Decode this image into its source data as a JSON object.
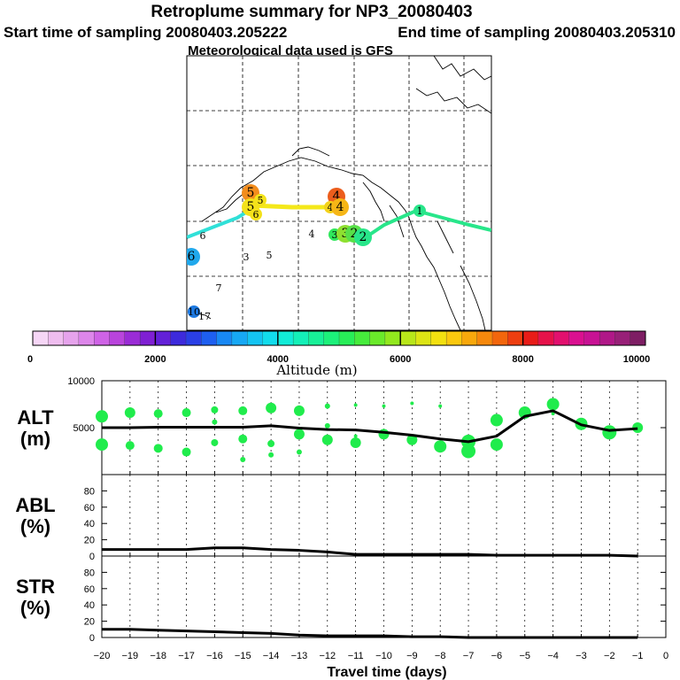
{
  "header": {
    "title": "Retroplume summary for NP3_20080403",
    "start_label": "Start time of sampling 20080403.205222",
    "end_label": "End time of sampling 20080403.205310",
    "met_label": "Meteorological data used is GFS"
  },
  "colorbar": {
    "label": "Altitude (m)",
    "min": 0,
    "max": 10000,
    "ticks": [
      "0",
      "2000",
      "4000",
      "6000",
      "8000",
      "10000"
    ],
    "colors": [
      "#f6d6f6",
      "#efbdef",
      "#e6a3ec",
      "#dd86ea",
      "#cf63e6",
      "#b944dc",
      "#9a2cd6",
      "#7f1fd3",
      "#6320d8",
      "#3d2adc",
      "#2a3fe6",
      "#1e5ff0",
      "#1888f4",
      "#17a8f4",
      "#14c4f2",
      "#12dcec",
      "#12ecd8",
      "#14f0b8",
      "#18f098",
      "#1cf07a",
      "#28ee58",
      "#46ec3c",
      "#6aea2a",
      "#92e81e",
      "#b8e61a",
      "#dce414",
      "#f2e010",
      "#fac80e",
      "#f8a80c",
      "#f6880c",
      "#f2660c",
      "#ee3e10",
      "#e81c18",
      "#e6124a",
      "#e2106e",
      "#da1090",
      "#c81294",
      "#b01888",
      "#982078",
      "#7e1e64"
    ]
  },
  "map_markers": [
    {
      "label": "5",
      "color": "#f28c1c",
      "size": "big"
    },
    {
      "label": "5",
      "color": "#f4e21a",
      "size": "mid"
    },
    {
      "label": "5",
      "color": "#f4e21a",
      "size": "big"
    },
    {
      "label": "6",
      "color": "#f4e21a",
      "size": "mid"
    },
    {
      "label": "4",
      "color": "#ec5d1c",
      "size": "big"
    },
    {
      "label": "4",
      "color": "#f4d21a",
      "size": "mid"
    },
    {
      "label": "4",
      "color": "#f6b616",
      "size": "big"
    },
    {
      "label": "4",
      "color": "#000000",
      "size": "text"
    },
    {
      "label": "3",
      "color": "#30e85c",
      "size": "mid"
    },
    {
      "label": "3",
      "color": "#8ee030",
      "size": "big"
    },
    {
      "label": "2",
      "color": "#58e048",
      "size": "big"
    },
    {
      "label": "2",
      "color": "#28e68a",
      "size": "big"
    },
    {
      "label": "1",
      "color": "#28e68a",
      "size": "mid"
    },
    {
      "label": "6",
      "color": "#000000",
      "size": "text"
    },
    {
      "label": "6",
      "color": "#20a8ec",
      "size": "big"
    },
    {
      "label": "3",
      "color": "#000000",
      "size": "text"
    },
    {
      "label": "5",
      "color": "#1c90d8",
      "size": "text"
    },
    {
      "label": "7",
      "color": "#000000",
      "size": "text"
    },
    {
      "label": "10",
      "color": "#1c78e0",
      "size": "mid"
    },
    {
      "label": "17",
      "color": "#2060e0",
      "size": "text"
    }
  ],
  "map_trajectories": [
    {
      "name": "cyan",
      "color": "#30e0d8"
    },
    {
      "name": "yellow",
      "color": "#f4e81a"
    },
    {
      "name": "green",
      "color": "#28e68a"
    }
  ],
  "chart_data": [
    {
      "type": "line",
      "panel": "ALT",
      "ylabel": "ALT",
      "yunit": "(m)",
      "ylim": [
        0,
        10000
      ],
      "yticks": [
        5000,
        10000
      ],
      "xlim": [
        -20,
        0
      ],
      "series": [
        {
          "name": "median altitude",
          "color": "#000000",
          "x": [
            -20,
            -19,
            -18,
            -17,
            -16,
            -15,
            -14,
            -13,
            -12,
            -11,
            -10,
            -9,
            -8,
            -7,
            -6,
            -5,
            -4,
            -3,
            -2,
            -1
          ],
          "values": [
            5000,
            5000,
            5050,
            5050,
            5050,
            5050,
            5200,
            4950,
            4800,
            4750,
            4500,
            4200,
            3800,
            3500,
            4100,
            6200,
            6800,
            5300,
            4700,
            4900
          ]
        }
      ],
      "points": {
        "color": "#20ec4c",
        "x": [
          -20,
          -20,
          -19,
          -19,
          -18,
          -18,
          -17,
          -17,
          -16,
          -16,
          -16,
          -15,
          -15,
          -15,
          -14,
          -14,
          -14,
          -13,
          -13,
          -13,
          -12,
          -12,
          -12,
          -11,
          -11,
          -11,
          -10,
          -10,
          -9,
          -9,
          -8,
          -8,
          -7,
          -7,
          -6,
          -6,
          -5,
          -4,
          -4,
          -3,
          -2,
          -1
        ],
        "values": [
          6200,
          3200,
          6600,
          3100,
          6500,
          2800,
          6600,
          2400,
          6900,
          3400,
          5600,
          6800,
          3800,
          1600,
          7100,
          3300,
          2100,
          6800,
          4300,
          2400,
          7300,
          3700,
          5200,
          7400,
          3400,
          4100,
          7300,
          4300,
          7600,
          3700,
          7300,
          3000,
          3500,
          2500,
          5800,
          3200,
          6600,
          7500,
          6500,
          5400,
          4500,
          5000
        ],
        "sizes": [
          7,
          7,
          6,
          5,
          5,
          5,
          5,
          5,
          4,
          4,
          3,
          5,
          5,
          3,
          6,
          4,
          3,
          6,
          6,
          3,
          3,
          6,
          3,
          2,
          6,
          2,
          2,
          6,
          2,
          6,
          2,
          7,
          8,
          8,
          7,
          7,
          7,
          7,
          2,
          7,
          8,
          6
        ]
      }
    },
    {
      "type": "line",
      "panel": "ABL",
      "ylabel": "ABL",
      "yunit": "(%)",
      "ylim": [
        0,
        100
      ],
      "yticks": [
        0,
        20,
        40,
        60,
        80
      ],
      "xlim": [
        -20,
        0
      ],
      "series": [
        {
          "name": "ABL fraction",
          "color": "#000000",
          "x": [
            -20,
            -19,
            -18,
            -17,
            -16,
            -15,
            -14,
            -13,
            -12,
            -11,
            -10,
            -9,
            -8,
            -7,
            -6,
            -5,
            -4,
            -3,
            -2,
            -1
          ],
          "values": [
            8,
            8,
            8,
            8,
            10,
            10,
            8,
            7,
            5,
            2,
            2,
            2,
            2,
            2,
            1,
            1,
            1,
            1,
            1,
            0
          ]
        }
      ]
    },
    {
      "type": "line",
      "panel": "STR",
      "ylabel": "STR",
      "yunit": "(%)",
      "ylim": [
        0,
        100
      ],
      "yticks": [
        0,
        20,
        40,
        60,
        80
      ],
      "xlim": [
        -20,
        0
      ],
      "xlabel": "Travel time (days)",
      "xticks": [
        -20,
        -19,
        -18,
        -17,
        -16,
        -15,
        -14,
        -13,
        -12,
        -11,
        -10,
        -9,
        -8,
        -7,
        -6,
        -5,
        -4,
        -3,
        -2,
        -1,
        0
      ],
      "series": [
        {
          "name": "STR fraction",
          "color": "#000000",
          "x": [
            -20,
            -19,
            -18,
            -17,
            -16,
            -15,
            -14,
            -13,
            -12,
            -11,
            -10,
            -9,
            -8,
            -7,
            -6,
            -5,
            -4,
            -3,
            -2,
            -1
          ],
          "values": [
            10,
            10,
            9,
            8,
            7,
            6,
            5,
            3,
            2,
            2,
            2,
            1,
            1,
            0,
            0,
            0,
            0,
            0,
            0,
            0
          ]
        }
      ]
    }
  ]
}
